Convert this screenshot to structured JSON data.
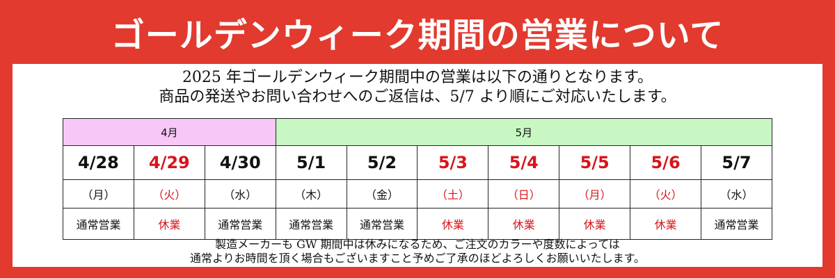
{
  "title": "ゴールデンウィーク期間の営業について",
  "intro": {
    "line1": "2025 年ゴールデンウィーク期間中の営業は以下の通りとなります。",
    "line2": "商品の発送やお問い合わせへのご返信は、5/7 より順にご対応いたします。"
  },
  "calendar": {
    "months": [
      {
        "label": "4月",
        "span": 3,
        "color": "#f7c8f7"
      },
      {
        "label": "5月",
        "span": 7,
        "color": "#c8f7c3"
      }
    ],
    "days": [
      {
        "date": "4/28",
        "weekday": "（月）",
        "status": "通常営業",
        "holiday": false
      },
      {
        "date": "4/29",
        "weekday": "（火）",
        "status": "休業",
        "holiday": true
      },
      {
        "date": "4/30",
        "weekday": "（水）",
        "status": "通常営業",
        "holiday": false
      },
      {
        "date": "5/1",
        "weekday": "（木）",
        "status": "通常営業",
        "holiday": false
      },
      {
        "date": "5/2",
        "weekday": "（金）",
        "status": "通常営業",
        "holiday": false
      },
      {
        "date": "5/3",
        "weekday": "（土）",
        "status": "休業",
        "holiday": true
      },
      {
        "date": "5/4",
        "weekday": "（日）",
        "status": "休業",
        "holiday": true
      },
      {
        "date": "5/5",
        "weekday": "（月）",
        "status": "休業",
        "holiday": true
      },
      {
        "date": "5/6",
        "weekday": "（火）",
        "status": "休業",
        "holiday": true
      },
      {
        "date": "5/7",
        "weekday": "（水）",
        "status": "通常営業",
        "holiday": false
      }
    ]
  },
  "note": {
    "line1": "製造メーカーも GW 期間中は休みになるため、ご注文のカラーや度数によっては",
    "line2": "通常よりお時間を頂く場合もございますこと予めご了承のほどよろしくお願いいたします。"
  },
  "colors": {
    "brand_red": "#e23a2e",
    "holiday_red": "#d8141b",
    "april_header": "#f7c8f7",
    "may_header": "#c8f7c3"
  }
}
